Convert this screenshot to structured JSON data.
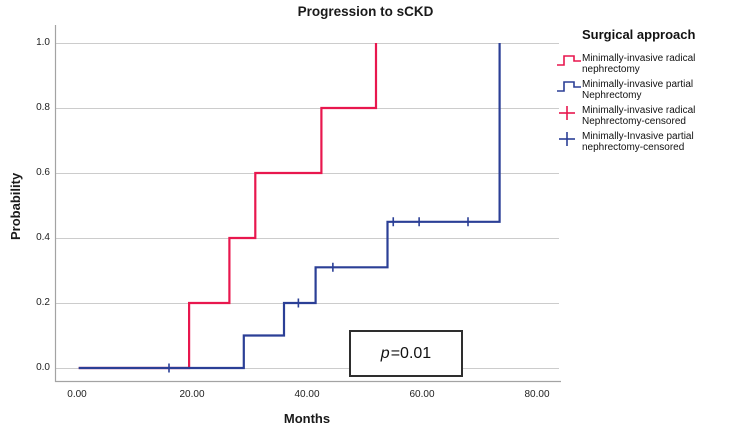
{
  "chart": {
    "title": "Progression to sCKD",
    "x_axis_label": "Months",
    "y_axis_label": "Probability"
  },
  "legend": {
    "title": "Surgical approach",
    "items": [
      {
        "key": "radical",
        "type": "step",
        "color": "#e8174e",
        "label": "Minimally-invasive radical nephrectomy"
      },
      {
        "key": "partial",
        "type": "step",
        "color": "#2b3f96",
        "label": "Minimally-invasive partial Nephrectomy"
      },
      {
        "key": "radical-censored",
        "type": "plus",
        "color": "#e8174e",
        "label": "Minimally-invasive radical Nephrectomy-censored"
      },
      {
        "key": "partial-censored",
        "type": "plus",
        "color": "#2b3f96",
        "label": "Minimally-Invasive partial nephrectomy-censored"
      }
    ]
  },
  "annotation": {
    "p_symbol": "p",
    "p_value_text": "=0.01"
  },
  "colors": {
    "red": "#e8174e",
    "blue": "#2b3f96",
    "gridline": "#cccccc",
    "axis": "#a3a3a3",
    "text": "#1a1a1a",
    "annotation_border": "#2e2e2e",
    "background": "#ffffff"
  },
  "chart_data": {
    "type": "line",
    "subtype": "kaplan_meier_step",
    "title": "Progression to sCKD",
    "xlabel": "Months",
    "ylabel": "Probability",
    "xlim": [
      -3.8,
      83.8
    ],
    "ylim": [
      -0.04,
      1.1
    ],
    "x_ticks": [
      0,
      20,
      40,
      60,
      80
    ],
    "x_tick_labels": [
      "0.00",
      "20.00",
      "40.00",
      "60.00",
      "80.00"
    ],
    "y_ticks": [
      0.0,
      0.2,
      0.4,
      0.6,
      0.8,
      1.0
    ],
    "y_tick_labels": [
      "0.0",
      "0.2",
      "0.4",
      "0.6",
      "0.8",
      "1.0"
    ],
    "grid": "horizontal",
    "legend_position": "right",
    "p_value": 0.01,
    "p_value_annotation": {
      "text": "p=0.01",
      "x_months": 57,
      "y_probability": 0.05
    },
    "series": [
      {
        "name": "Minimally-invasive radical nephrectomy",
        "key": "radical",
        "color": "#e8174e",
        "step_points": [
          [
            0.3,
            0
          ],
          [
            19.5,
            0
          ],
          [
            19.5,
            0.2
          ],
          [
            26.5,
            0.2
          ],
          [
            26.5,
            0.4
          ],
          [
            31,
            0.4
          ],
          [
            31,
            0.6
          ],
          [
            42.5,
            0.6
          ],
          [
            42.5,
            0.8
          ],
          [
            52,
            0.8
          ],
          [
            52,
            1.0
          ]
        ],
        "censored_points": []
      },
      {
        "name": "Minimally-invasive partial Nephrectomy",
        "key": "partial",
        "color": "#2b3f96",
        "step_points": [
          [
            0.3,
            0
          ],
          [
            29,
            0
          ],
          [
            29,
            0.1
          ],
          [
            36,
            0.1
          ],
          [
            36,
            0.2
          ],
          [
            41.5,
            0.2
          ],
          [
            41.5,
            0.31
          ],
          [
            54,
            0.31
          ],
          [
            54,
            0.45
          ],
          [
            73.5,
            0.45
          ],
          [
            73.5,
            1.0
          ]
        ],
        "censored_points": [
          [
            16,
            0
          ],
          [
            38.5,
            0.2
          ],
          [
            44.5,
            0.31
          ],
          [
            55,
            0.45
          ],
          [
            59.5,
            0.45
          ],
          [
            68,
            0.45
          ]
        ]
      }
    ]
  }
}
